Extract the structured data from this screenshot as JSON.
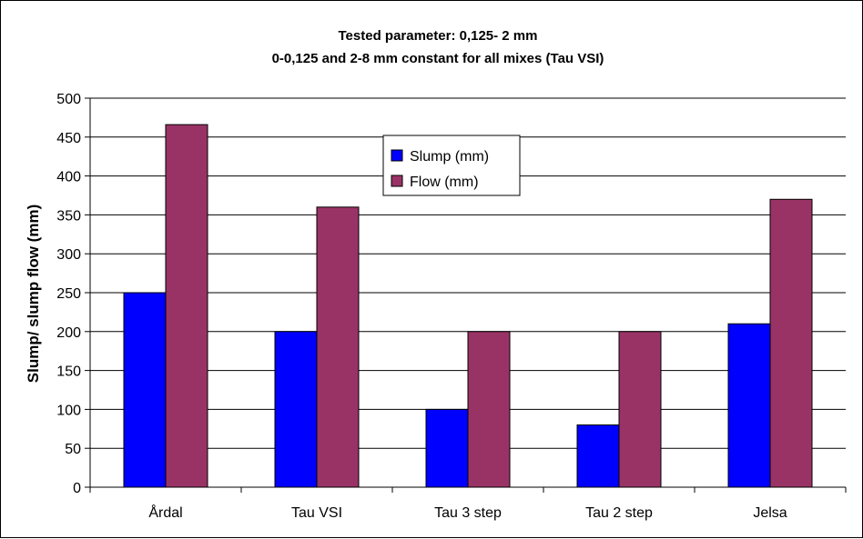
{
  "chart_data": {
    "type": "bar",
    "title_lines": [
      "Tested parameter: 0,125- 2 mm",
      "0-0,125 and 2-8 mm constant for all mixes (Tau VSI)"
    ],
    "xlabel": "",
    "ylabel": "Slump/ slump flow (mm)",
    "categories": [
      "Årdal",
      "Tau VSI",
      "Tau 3 step",
      "Tau 2 step",
      "Jelsa"
    ],
    "series": [
      {
        "name": "Slump (mm)",
        "color": "#0000ff",
        "values": [
          250,
          200,
          100,
          80,
          210
        ]
      },
      {
        "name": "Flow (mm)",
        "color": "#993366",
        "values": [
          466,
          360,
          200,
          200,
          370
        ]
      }
    ],
    "ylim": [
      0,
      500
    ],
    "yticks": [
      0,
      50,
      100,
      150,
      200,
      250,
      300,
      350,
      400,
      450,
      500
    ],
    "grid": true,
    "legend_position": "center-top"
  }
}
